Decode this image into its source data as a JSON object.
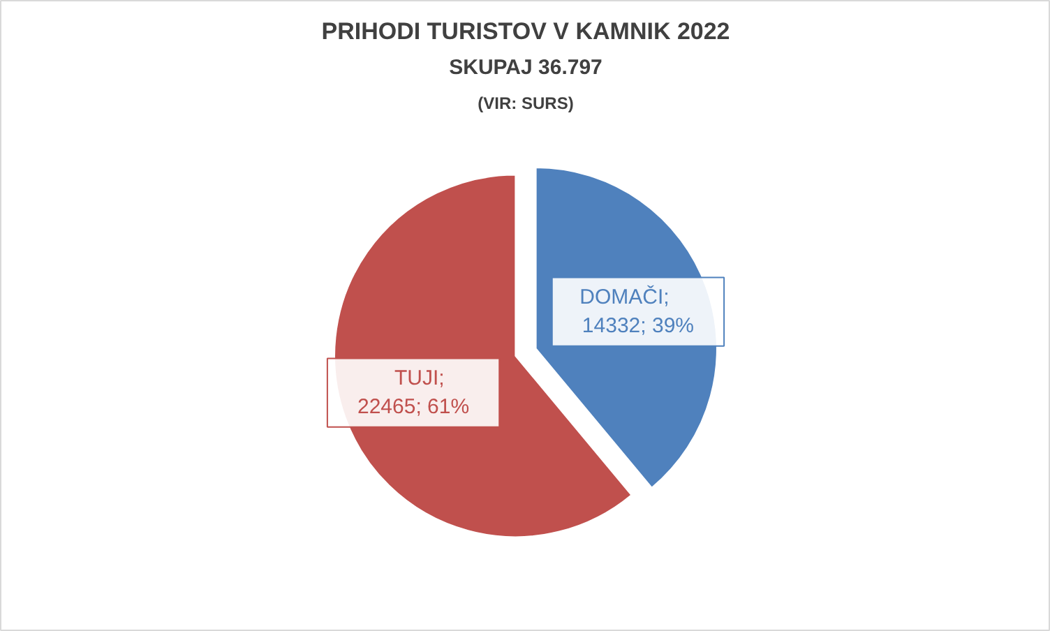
{
  "chart_data": {
    "type": "pie",
    "title": "PRIHODI TURISTOV V KAMNIK 2022",
    "subtitle": "SKUPAJ 36.797",
    "annotations": [
      "(VIR: SURS)"
    ],
    "categories": [
      "DOMAČI",
      "TUJI"
    ],
    "values": [
      14332,
      22465
    ],
    "colors": [
      "#4f81bd",
      "#c0504d"
    ],
    "value_labels": [
      "; 14332; 39%",
      "; 22465; 61%"
    ]
  }
}
